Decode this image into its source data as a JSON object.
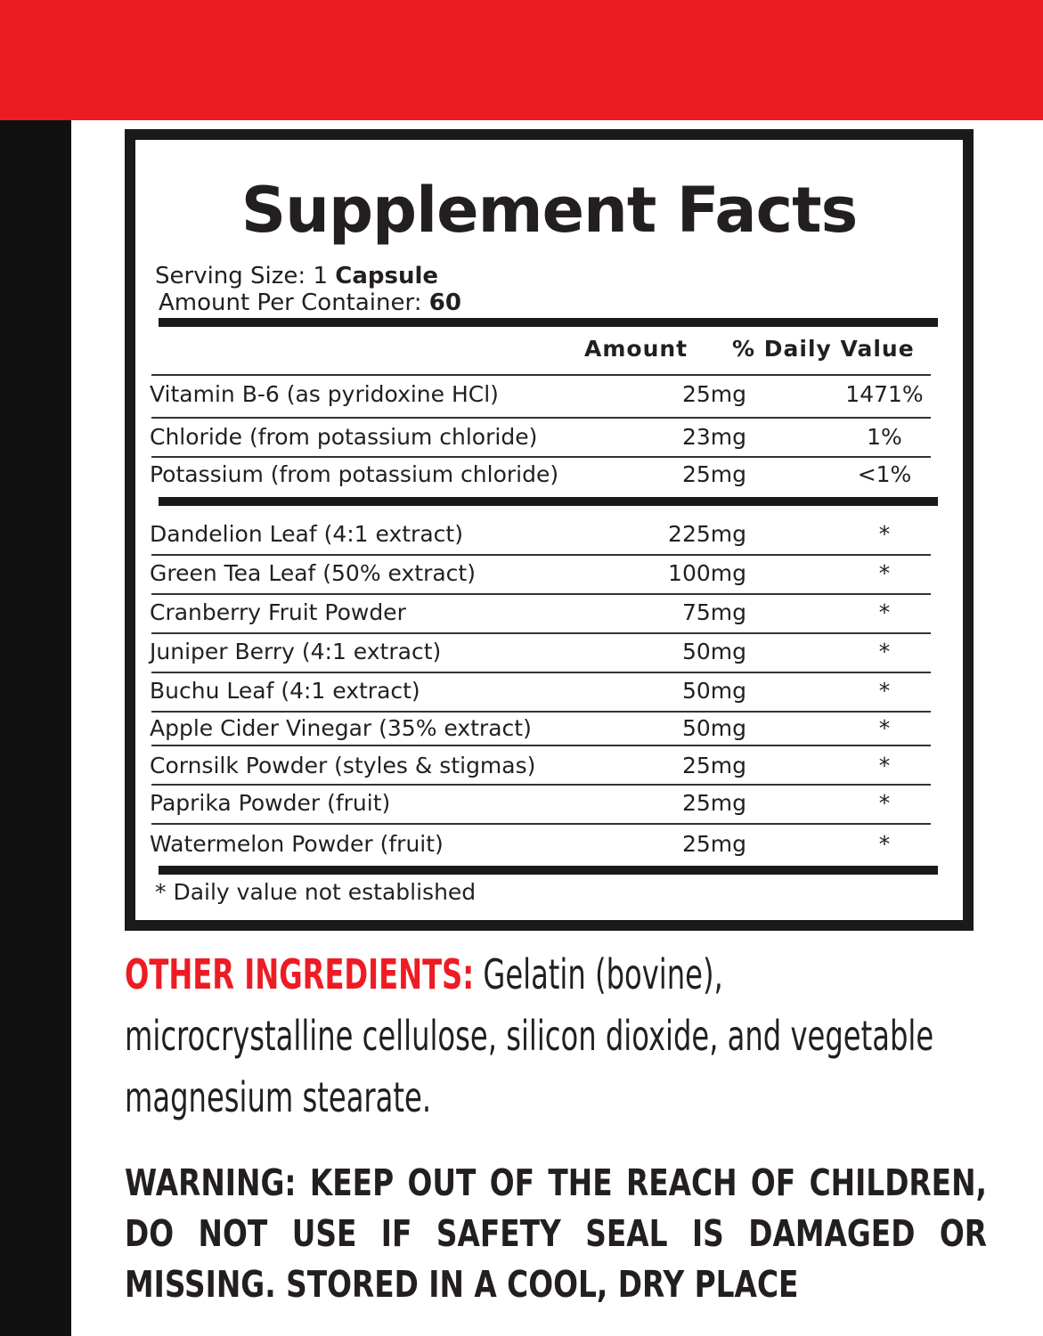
{
  "colors": {
    "accent": "#ed1c24",
    "dark": "#1a1a1a"
  },
  "facts": {
    "title": "Supplement Facts",
    "serving_label": "Serving Size: 1 ",
    "serving_value": "Capsule",
    "container_label": "Amount Per Container: ",
    "container_value": "60",
    "col_amount": "Amount",
    "col_dv": "% Daily Value",
    "vitamins": [
      {
        "name": "Vitamin B-6 (as pyridoxine HCl)",
        "amount": "25mg",
        "dv": "1471%"
      },
      {
        "name": "Chloride (from potassium chloride)",
        "amount": "23mg",
        "dv": "1%"
      },
      {
        "name": "Potassium (from potassium chloride)",
        "amount": "25mg",
        "dv": "<1%"
      }
    ],
    "herbs": [
      {
        "name": "Dandelion Leaf (4:1 extract)",
        "amount": "225mg",
        "dv": "*"
      },
      {
        "name": "Green Tea Leaf (50% extract)",
        "amount": "100mg",
        "dv": "*"
      },
      {
        "name": "Cranberry Fruit Powder",
        "amount": "75mg",
        "dv": "*"
      },
      {
        "name": "Juniper Berry (4:1 extract)",
        "amount": "50mg",
        "dv": "*"
      },
      {
        "name": "Buchu Leaf (4:1 extract)",
        "amount": "50mg",
        "dv": "*"
      },
      {
        "name": "Apple Cider Vinegar (35% extract)",
        "amount": "50mg",
        "dv": "*"
      },
      {
        "name": "Cornsilk Powder (styles & stigmas)",
        "amount": "25mg",
        "dv": "*"
      },
      {
        "name": "Paprika Powder (fruit)",
        "amount": "25mg",
        "dv": "*"
      },
      {
        "name": "Watermelon Powder (fruit)",
        "amount": "25mg",
        "dv": "*"
      }
    ],
    "footnote": "* Daily value not established"
  },
  "other_ingredients": {
    "label": "OTHER INGREDIENTS:",
    "text": " Gelatin (bovine), microcrystalline cellulose, silicon dioxide, and vegetable magnesium stearate."
  },
  "warning": "WARNING: KEEP OUT OF THE REACH OF CHILDREN, DO NOT USE IF SAFETY SEAL IS DAMAGED OR MISSING. STORED IN A COOL, DRY PLACE"
}
